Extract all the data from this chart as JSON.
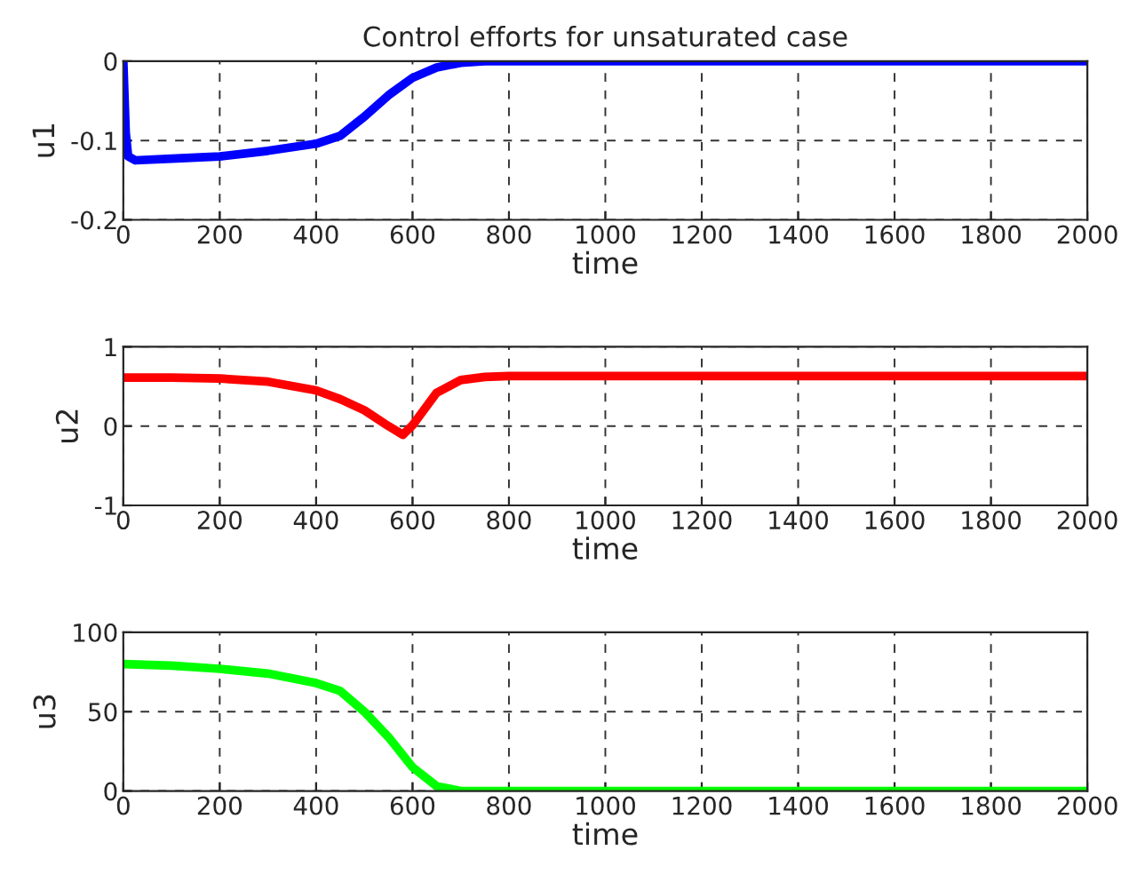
{
  "chart_data": [
    {
      "type": "line",
      "title": "Control efforts for unsaturated case",
      "xlabel": "time",
      "ylabel": "u1",
      "xlim": [
        0,
        2000
      ],
      "ylim": [
        -0.2,
        0
      ],
      "xticks": [
        0,
        200,
        400,
        600,
        800,
        1000,
        1200,
        1400,
        1600,
        1800,
        2000
      ],
      "yticks": [
        -0.2,
        -0.1,
        0
      ],
      "grid": true,
      "line_style": "solid",
      "marker": "none",
      "series": [
        {
          "color": "#0000ff",
          "x": [
            0,
            5,
            10,
            25,
            100,
            200,
            300,
            400,
            450,
            500,
            550,
            600,
            650,
            700,
            750,
            1000,
            1500,
            2000
          ],
          "values": [
            0,
            -0.09,
            -0.12,
            -0.125,
            -0.123,
            -0.12,
            -0.113,
            -0.104,
            -0.094,
            -0.07,
            -0.043,
            -0.021,
            -0.008,
            -0.002,
            0,
            0,
            0,
            0
          ]
        }
      ]
    },
    {
      "type": "line",
      "xlabel": "time",
      "ylabel": "u2",
      "xlim": [
        0,
        2000
      ],
      "ylim": [
        -1,
        1
      ],
      "xticks": [
        0,
        200,
        400,
        600,
        800,
        1000,
        1200,
        1400,
        1600,
        1800,
        2000
      ],
      "yticks": [
        -1,
        0,
        1
      ],
      "grid": true,
      "line_style": "solid",
      "marker": "none",
      "series": [
        {
          "color": "#ff0000",
          "x": [
            0,
            100,
            200,
            300,
            400,
            450,
            500,
            550,
            580,
            600,
            650,
            700,
            750,
            800,
            1000,
            1500,
            2000
          ],
          "values": [
            0.61,
            0.61,
            0.6,
            0.56,
            0.45,
            0.34,
            0.2,
            0,
            -0.11,
            0.01,
            0.42,
            0.58,
            0.62,
            0.63,
            0.63,
            0.63,
            0.63
          ]
        }
      ]
    },
    {
      "type": "line",
      "xlabel": "time",
      "ylabel": "u3",
      "xlim": [
        0,
        2000
      ],
      "ylim": [
        0,
        100
      ],
      "xticks": [
        0,
        200,
        400,
        600,
        800,
        1000,
        1200,
        1400,
        1600,
        1800,
        2000
      ],
      "yticks": [
        0,
        50,
        100
      ],
      "grid": true,
      "line_style": "solid",
      "marker": "none",
      "series": [
        {
          "color": "#00ff00",
          "x": [
            0,
            100,
            200,
            300,
            400,
            450,
            500,
            550,
            600,
            650,
            700,
            750,
            1000,
            1500,
            2000
          ],
          "values": [
            80,
            79,
            77,
            74,
            68,
            63,
            50,
            34,
            15,
            3,
            0,
            0,
            0,
            0,
            0
          ]
        }
      ]
    }
  ]
}
